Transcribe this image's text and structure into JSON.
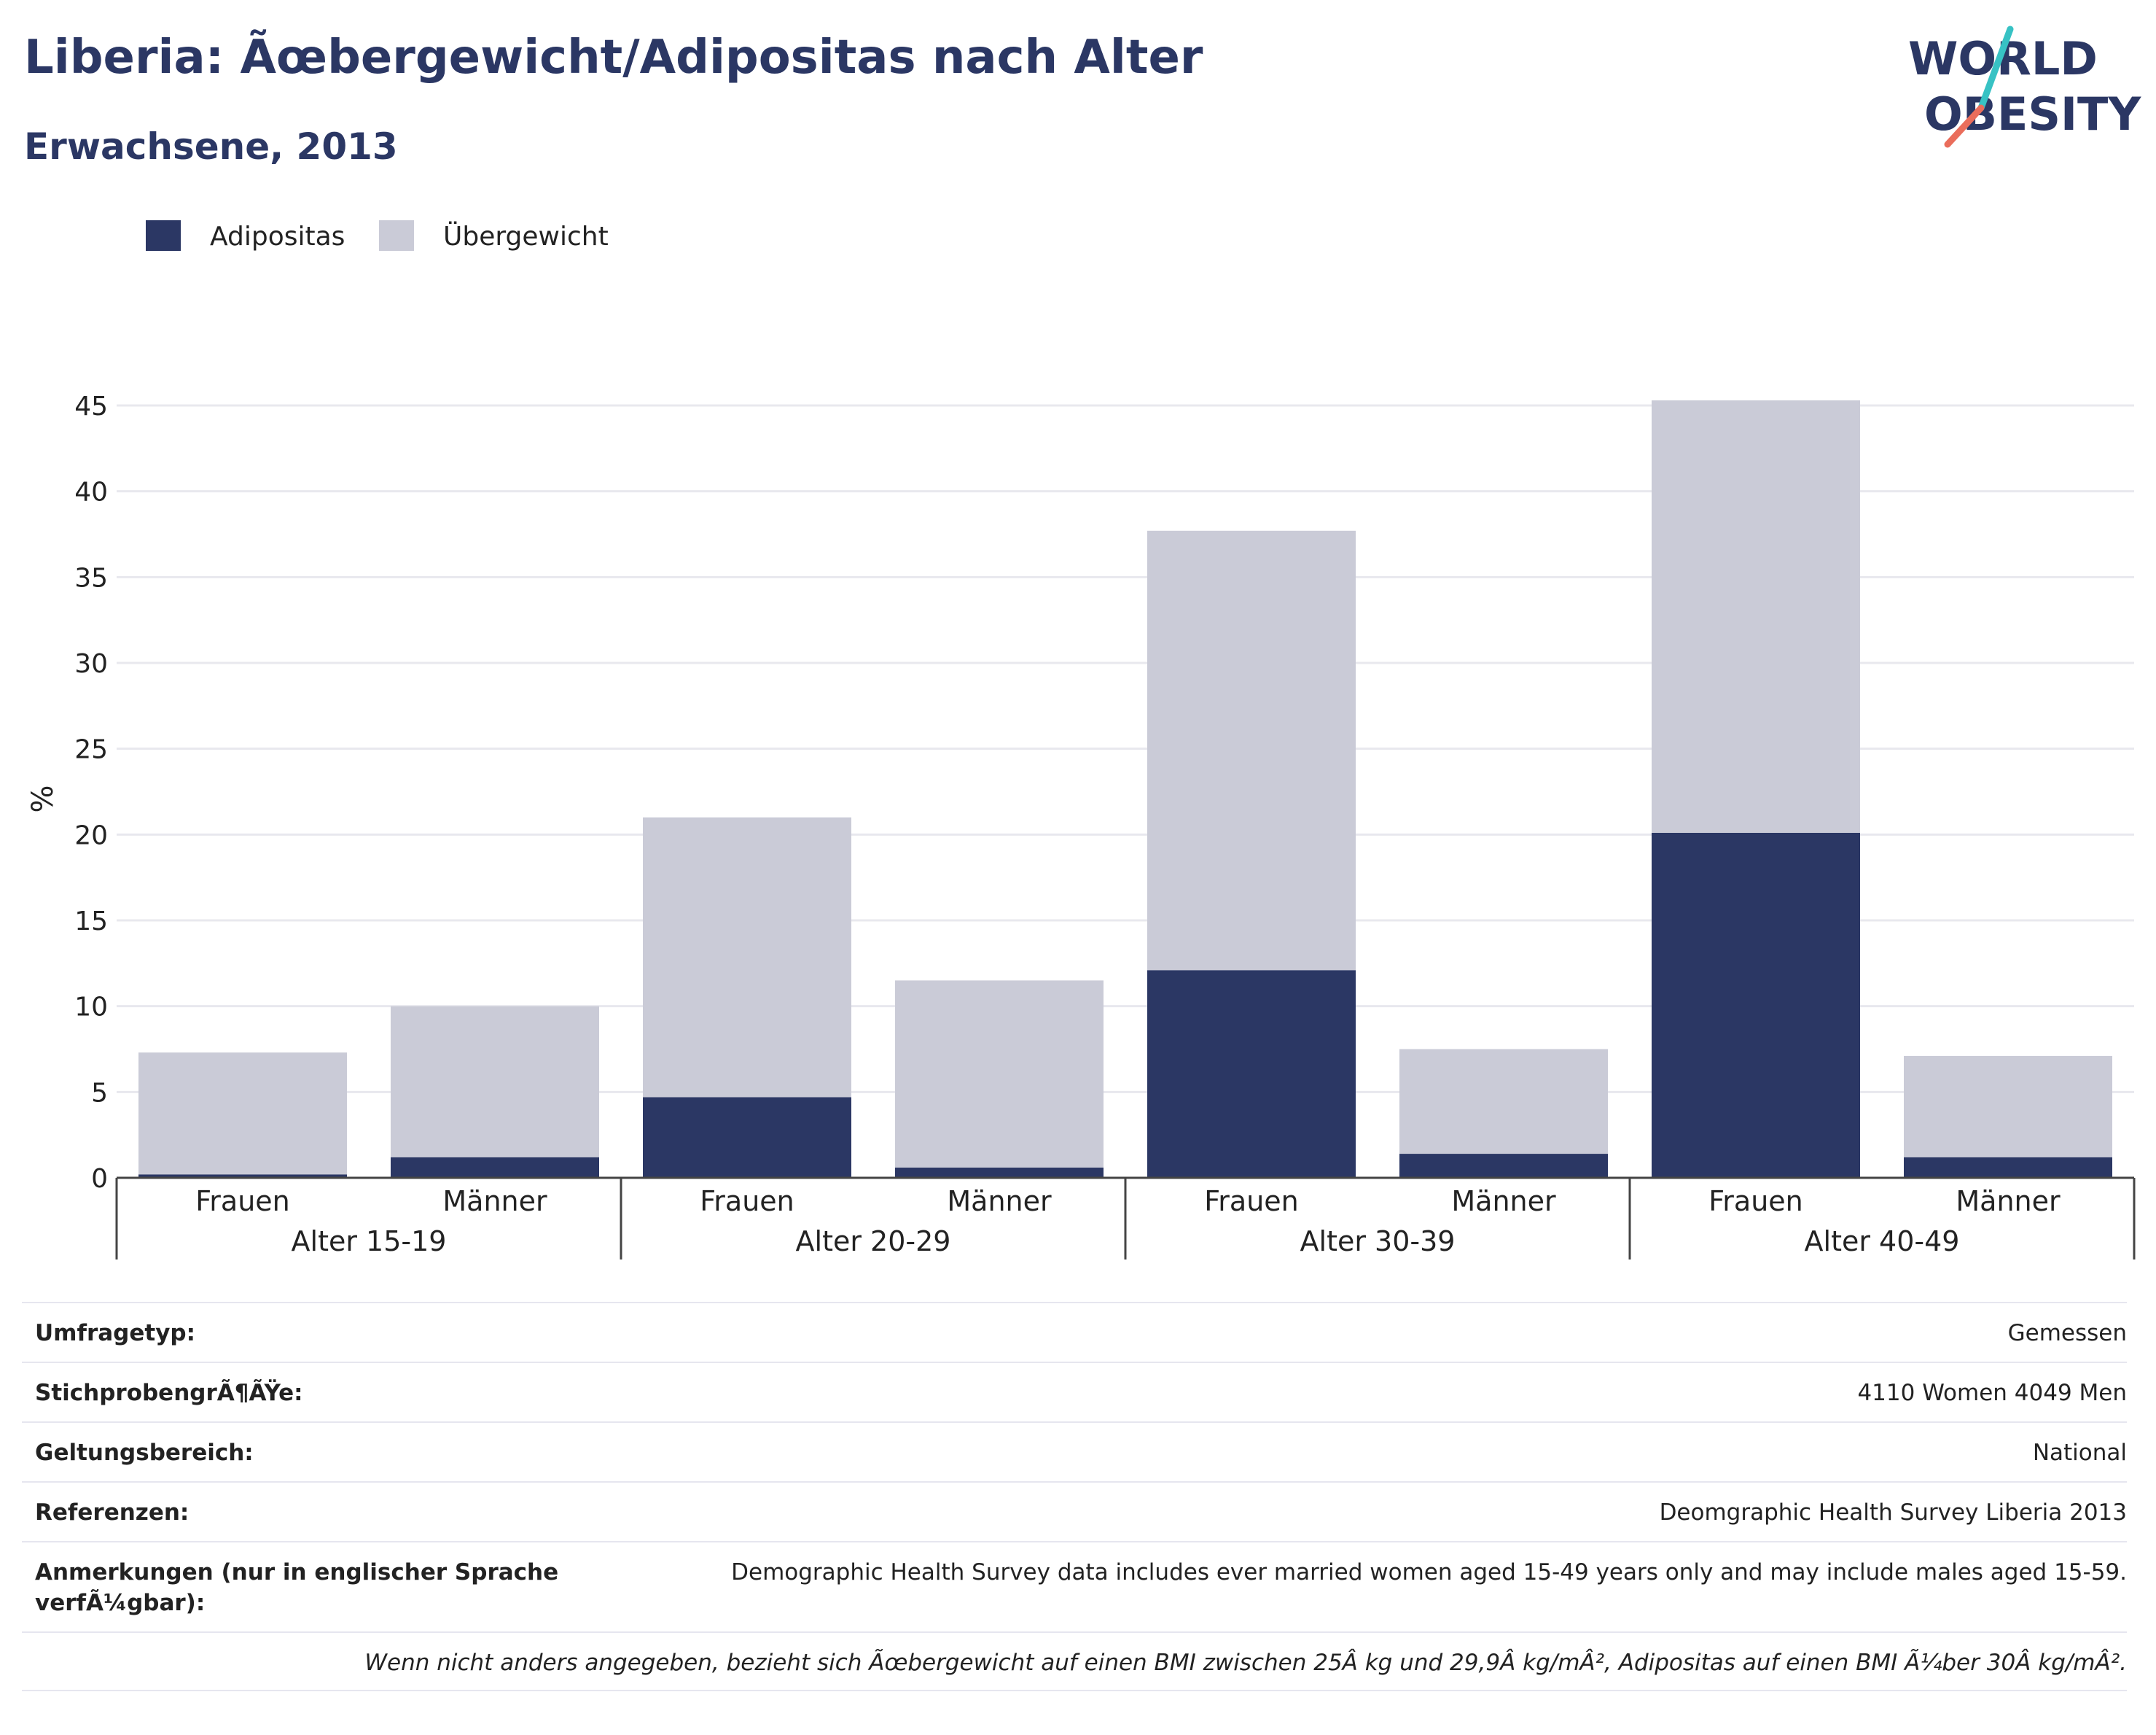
{
  "title": "Liberia: Ãœbergewicht/Adipositas nach Alter",
  "subtitle": "Erwachsene, 2013",
  "logo": {
    "line1": "WORLD",
    "line2": "OBESITY"
  },
  "colors": {
    "obese": "#2b3764",
    "overweight": "#cacbd7",
    "title": "#2b3764",
    "logo_teal": "#37c2c4",
    "logo_coral": "#ea6d5b"
  },
  "chart_data": {
    "type": "bar",
    "stacked": true,
    "ylabel": "%",
    "ylim": [
      0,
      45
    ],
    "yticks": [
      0,
      5,
      10,
      15,
      20,
      25,
      30,
      35,
      40,
      45
    ],
    "grid": true,
    "legend_position": "top-left",
    "groups": [
      {
        "label": "Alter 15-19",
        "categories": [
          "Frauen",
          "Männer"
        ]
      },
      {
        "label": "Alter 20-29",
        "categories": [
          "Frauen",
          "Männer"
        ]
      },
      {
        "label": "Alter 30-39",
        "categories": [
          "Frauen",
          "Männer"
        ]
      },
      {
        "label": "Alter 40-49",
        "categories": [
          "Frauen",
          "Männer"
        ]
      }
    ],
    "series": [
      {
        "name": "Adipositas",
        "values": [
          0.2,
          1.2,
          4.7,
          0.6,
          12.1,
          1.4,
          20.1,
          1.2
        ]
      },
      {
        "name": "Übergewicht",
        "values": [
          7.1,
          8.8,
          16.3,
          10.9,
          25.6,
          6.1,
          25.2,
          5.9
        ]
      }
    ]
  },
  "info": [
    {
      "label": "Umfragetyp:",
      "value": "Gemessen"
    },
    {
      "label": "StichprobengrÃ¶ÃŸe:",
      "value": "4110 Women 4049 Men"
    },
    {
      "label": "Geltungsbereich:",
      "value": "National"
    },
    {
      "label": "Referenzen:",
      "value": "Deomgraphic Health Survey Liberia 2013"
    },
    {
      "label": "Anmerkungen (nur in englischer Sprache verfÃ¼gbar):",
      "value": "Demographic Health Survey data includes ever married women aged 15-49 years only and may include males aged 15-59."
    }
  ],
  "footnote": "Wenn nicht anders angegeben, bezieht sich Ãœbergewicht auf einen BMI zwischen 25Â kg und 29,9Â kg/mÂ², Adipositas auf einen BMI Ã¼ber 30Â kg/mÂ²."
}
